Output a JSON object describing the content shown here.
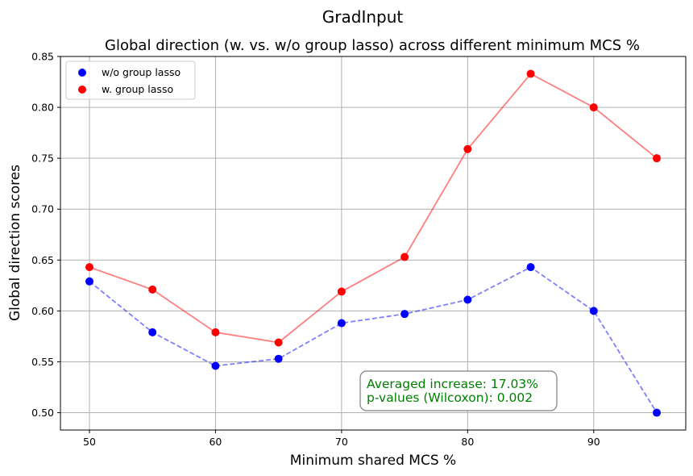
{
  "chart_data": {
    "type": "scatter",
    "suptitle": "GradInput",
    "title": "Global direction (w. vs. w/o group lasso) across different minimum MCS %",
    "xlabel": "Minimum shared MCS %",
    "ylabel": "Global direction scores",
    "xlim": [
      47.7,
      97.3
    ],
    "ylim": [
      0.483,
      0.85
    ],
    "xticks": [
      50,
      60,
      70,
      80,
      90
    ],
    "yticks": [
      0.5,
      0.55,
      0.6,
      0.65,
      0.7,
      0.75,
      0.8,
      0.85
    ],
    "grid": true,
    "legend_position": "upper-left",
    "x": [
      50,
      55,
      60,
      65,
      70,
      75,
      80,
      85,
      90,
      95
    ],
    "series": [
      {
        "name": "w/o group lasso",
        "color": "#0000ff",
        "line_style": "dashed",
        "values": [
          0.629,
          0.579,
          0.546,
          0.553,
          0.588,
          0.597,
          0.611,
          0.643,
          0.6,
          0.5
        ]
      },
      {
        "name": "w. group lasso",
        "color": "#ff0000",
        "line_style": "solid",
        "values": [
          0.643,
          0.621,
          0.579,
          0.569,
          0.619,
          0.653,
          0.759,
          0.833,
          0.8,
          0.75
        ]
      }
    ],
    "annotation": {
      "lines": [
        "Averaged increase: 17.03%",
        "p-values (Wilcoxon): 0.002"
      ],
      "color": "#008000"
    }
  }
}
